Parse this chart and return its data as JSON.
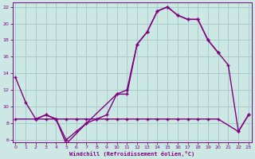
{
  "bg_color": "#cce8e4",
  "grid_color": "#aacccc",
  "line_color": "#800080",
  "xlim": [
    0,
    23
  ],
  "ylim": [
    6,
    22
  ],
  "xtick_vals": [
    0,
    1,
    2,
    3,
    4,
    5,
    6,
    7,
    8,
    9,
    10,
    11,
    12,
    13,
    14,
    15,
    16,
    17,
    18,
    19,
    20,
    21,
    22,
    23
  ],
  "ytick_vals": [
    6,
    8,
    10,
    12,
    14,
    16,
    18,
    20,
    22
  ],
  "xlabel": "Windchill (Refroidissement éolien,°C)",
  "line1_x": [
    0,
    1,
    2,
    3,
    4,
    5,
    6,
    7,
    8,
    9,
    10,
    11,
    12,
    13,
    14,
    15,
    16,
    17,
    18,
    19,
    20,
    21,
    22,
    23
  ],
  "line1_y": [
    13.5,
    10.5,
    8.5,
    9.0,
    8.5,
    6.0,
    7.0,
    8.0,
    8.5,
    9.0,
    11.5,
    11.5,
    17.5,
    19.0,
    21.5,
    22.0,
    21.0,
    20.5,
    20.5,
    18.0,
    16.5,
    15.0,
    7.0,
    9.0
  ],
  "line2_x": [
    0,
    2,
    3,
    4,
    5,
    7,
    10,
    11,
    12,
    13,
    14,
    15,
    16,
    17,
    18,
    19,
    20
  ],
  "line2_y": [
    8.5,
    8.5,
    9.0,
    8.5,
    5.5,
    8.0,
    11.5,
    12.0,
    17.5,
    19.0,
    21.5,
    22.0,
    21.0,
    20.5,
    20.5,
    18.0,
    16.5
  ],
  "line3_x": [
    2,
    3,
    4,
    5,
    6,
    7,
    8,
    9,
    10,
    11,
    12,
    13,
    14,
    15,
    16,
    17,
    18,
    19,
    20,
    22,
    23
  ],
  "line3_y": [
    8.5,
    8.5,
    8.5,
    8.5,
    8.5,
    8.5,
    8.5,
    8.5,
    8.5,
    8.5,
    8.5,
    8.5,
    8.5,
    8.5,
    8.5,
    8.5,
    8.5,
    8.5,
    8.5,
    7.0,
    9.0
  ]
}
